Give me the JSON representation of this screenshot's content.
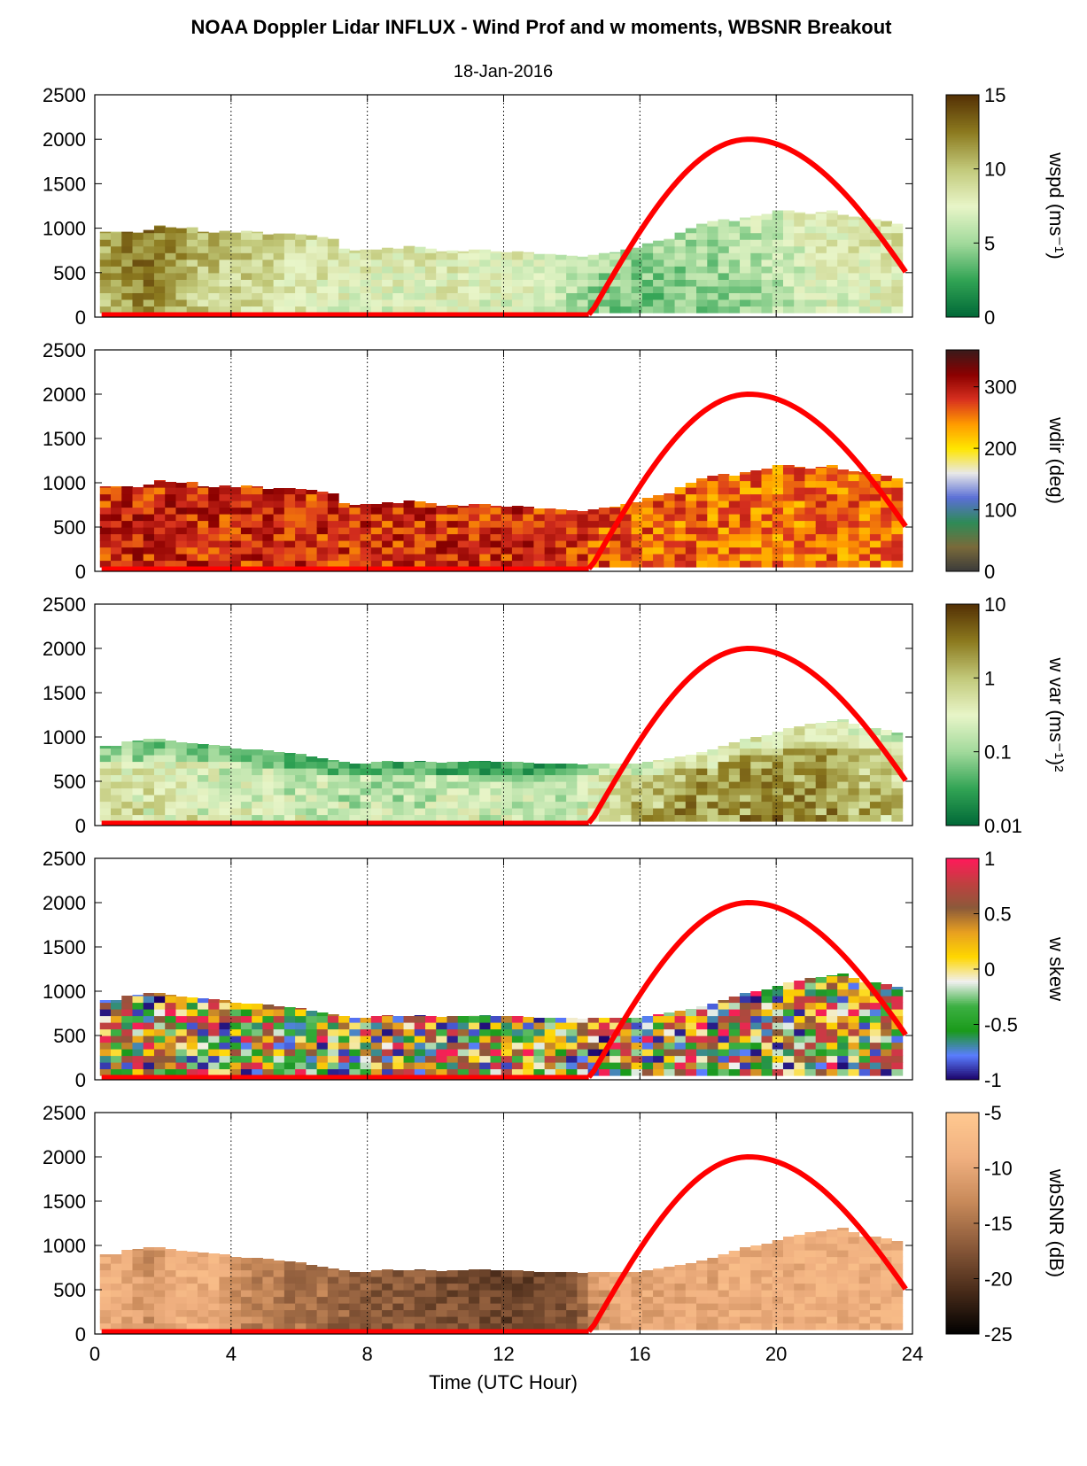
{
  "figure": {
    "title": "NOAA Doppler Lidar INFLUX - Wind Prof and w moments, WBSNR Breakout",
    "subtitle": "18-Jan-2016",
    "xlabel": "Time (UTC Hour)",
    "colors": {
      "sun_curve": "#ff0000",
      "axis": "#000000"
    }
  },
  "chart_data": [
    {
      "type": "heatmap",
      "id": "wspd",
      "clabel": "wspd (ms⁻¹)",
      "xlim": [
        0,
        24
      ],
      "ylim": [
        0,
        2500
      ],
      "yticks": [
        0,
        500,
        1000,
        1500,
        2000,
        2500
      ],
      "xticks": [
        0,
        4,
        8,
        12,
        16,
        20,
        24
      ],
      "clim": [
        0,
        15
      ],
      "cticks": [
        0,
        5,
        10,
        15
      ],
      "cticklabels": [
        "0",
        "5",
        "10",
        "15"
      ],
      "colormap": [
        "#006837",
        "#31a354",
        "#a1d99b",
        "#e8f5c8",
        "#c2c97a",
        "#8c7a1f",
        "#543005"
      ],
      "top_height": [
        960,
        960,
        960,
        950,
        980,
        1030,
        1010,
        1000,
        1010,
        960,
        950,
        970,
        950,
        970,
        960,
        930,
        940,
        940,
        930,
        920,
        900,
        880,
        770,
        750,
        760,
        760,
        780,
        770,
        800,
        790,
        770,
        740,
        750,
        740,
        760,
        760,
        740,
        730,
        740,
        730,
        710,
        710,
        700,
        690,
        680,
        700,
        720,
        730,
        760,
        780,
        830,
        860,
        880,
        950,
        1000,
        1050,
        1080,
        1100,
        1080,
        1120,
        1140,
        1160,
        1200,
        1200,
        1180,
        1160,
        1180,
        1200,
        1150,
        1130,
        1120,
        1100,
        1080,
        1050
      ],
      "mean_value": [
        11.5,
        11.8,
        12.4,
        12.8,
        13,
        12.6,
        11.8,
        11.4,
        10.8,
        10.6,
        10.4,
        10.2,
        10.1,
        10,
        9.8,
        9.5,
        9.3,
        9.2,
        9.1,
        9,
        8.8,
        8.6,
        8.5,
        8.4,
        8.3,
        8.3,
        8.2,
        8.2,
        8.2,
        8.3,
        8.4,
        8.5,
        8.5,
        8.4,
        8.3,
        8.2,
        8.1,
        8,
        7.9,
        7.8,
        7.6,
        7.3,
        7,
        6.6,
        6.1,
        5.7,
        5.4,
        5.2,
        5.1,
        5,
        5,
        5.1,
        5.2,
        5.3,
        5.4,
        5.5,
        5.6,
        5.7,
        5.9,
        6.1,
        6.3,
        6.6,
        6.9,
        7.2,
        7.5,
        7.8,
        8,
        8.2,
        8.3,
        8.4,
        8.5,
        8.6,
        8.7,
        8.8
      ],
      "sun_elevation": {
        "rise_hour": 14.5,
        "peak_hour": 19.2,
        "end_hour": 23.8,
        "peak_height": 2000
      }
    },
    {
      "type": "heatmap",
      "id": "wdir",
      "clabel": "wdir (deg)",
      "xlim": [
        0,
        24
      ],
      "ylim": [
        0,
        2500
      ],
      "yticks": [
        0,
        500,
        1000,
        1500,
        2000,
        2500
      ],
      "xticks": [
        0,
        4,
        8,
        12,
        16,
        20,
        24
      ],
      "clim": [
        0,
        360
      ],
      "cticks": [
        0,
        100,
        200,
        300
      ],
      "cticklabels": [
        "0",
        "100",
        "200",
        "300"
      ],
      "colormap": [
        "#3a3a3a",
        "#7a6a3a",
        "#2e8b57",
        "#5b6fd6",
        "#e8e8e8",
        "#ffe600",
        "#ff9a00",
        "#d7301f",
        "#8b0000",
        "#3a1a1a"
      ],
      "top_height": [
        960,
        960,
        960,
        950,
        980,
        1030,
        1010,
        1000,
        1010,
        960,
        950,
        970,
        950,
        970,
        960,
        930,
        940,
        940,
        930,
        920,
        900,
        880,
        770,
        750,
        760,
        760,
        780,
        770,
        800,
        790,
        770,
        740,
        750,
        740,
        760,
        760,
        740,
        730,
        740,
        730,
        710,
        710,
        700,
        690,
        680,
        700,
        720,
        730,
        760,
        780,
        830,
        860,
        880,
        950,
        1000,
        1050,
        1080,
        1100,
        1080,
        1120,
        1140,
        1160,
        1200,
        1200,
        1180,
        1160,
        1180,
        1200,
        1150,
        1130,
        1120,
        1100,
        1080,
        1050
      ],
      "mean_value": [
        286,
        288,
        290,
        290,
        289,
        288,
        288,
        287,
        287,
        286,
        286,
        286,
        286,
        285,
        285,
        285,
        285,
        285,
        285,
        284,
        284,
        284,
        284,
        284,
        284,
        284,
        284,
        284,
        284,
        284,
        284,
        284,
        284,
        284,
        284,
        284,
        284,
        284,
        284,
        284,
        283,
        283,
        283,
        282,
        281,
        272,
        266,
        264,
        262,
        261,
        260,
        259,
        258,
        257,
        256,
        255,
        255,
        254,
        254,
        254,
        254,
        254,
        254,
        254,
        254,
        254,
        254,
        254,
        254,
        254,
        254,
        254,
        254,
        254
      ],
      "sun_elevation": {
        "rise_hour": 14.5,
        "peak_hour": 19.2,
        "end_hour": 23.8,
        "peak_height": 2000
      }
    },
    {
      "type": "heatmap",
      "id": "wvar",
      "clabel": "w var (ms⁻¹)²",
      "scale": "log",
      "xlim": [
        0,
        24
      ],
      "ylim": [
        0,
        2500
      ],
      "yticks": [
        0,
        500,
        1000,
        1500,
        2000,
        2500
      ],
      "xticks": [
        0,
        4,
        8,
        12,
        16,
        20,
        24
      ],
      "clim": [
        0.01,
        10
      ],
      "cticks": [
        0.01,
        0.1,
        1,
        10
      ],
      "cticklabels": [
        "0.01",
        "0.1",
        "1",
        "10"
      ],
      "colormap": [
        "#006837",
        "#31a354",
        "#a1d99b",
        "#e8f5c8",
        "#c2c97a",
        "#8c7a1f",
        "#543005"
      ],
      "top_height": [
        900,
        900,
        950,
        960,
        980,
        980,
        960,
        940,
        930,
        920,
        910,
        900,
        870,
        860,
        860,
        850,
        830,
        820,
        810,
        780,
        760,
        740,
        720,
        700,
        700,
        720,
        730,
        720,
        720,
        730,
        720,
        710,
        720,
        720,
        730,
        730,
        720,
        720,
        720,
        710,
        700,
        700,
        700,
        700,
        690,
        700,
        700,
        700,
        700,
        700,
        720,
        740,
        760,
        780,
        800,
        830,
        860,
        900,
        940,
        980,
        1000,
        1020,
        1060,
        1100,
        1120,
        1150,
        1160,
        1180,
        1200,
        1150,
        1100,
        1100,
        1080,
        1050
      ],
      "mean_value": [
        0.3,
        0.32,
        0.3,
        0.28,
        0.28,
        0.26,
        0.25,
        0.24,
        0.22,
        0.2,
        0.19,
        0.18,
        0.17,
        0.16,
        0.16,
        0.15,
        0.15,
        0.14,
        0.14,
        0.14,
        0.13,
        0.13,
        0.12,
        0.12,
        0.12,
        0.12,
        0.12,
        0.12,
        0.12,
        0.12,
        0.12,
        0.12,
        0.12,
        0.12,
        0.12,
        0.11,
        0.11,
        0.11,
        0.11,
        0.11,
        0.11,
        0.11,
        0.12,
        0.14,
        0.18,
        0.25,
        0.35,
        0.5,
        0.6,
        0.7,
        0.8,
        0.9,
        1,
        1.1,
        1.2,
        1.3,
        1.3,
        1.4,
        1.4,
        1.4,
        1.5,
        1.5,
        1.5,
        1.4,
        1.4,
        1.3,
        1.2,
        1.1,
        1,
        0.9,
        0.8,
        0.7,
        0.6,
        0.5
      ],
      "sun_elevation": {
        "rise_hour": 14.5,
        "peak_hour": 19.2,
        "end_hour": 23.8,
        "peak_height": 2000
      }
    },
    {
      "type": "heatmap",
      "id": "wskew",
      "clabel": "w skew",
      "xlim": [
        0,
        24
      ],
      "ylim": [
        0,
        2500
      ],
      "yticks": [
        0,
        500,
        1000,
        1500,
        2000,
        2500
      ],
      "xticks": [
        0,
        4,
        8,
        12,
        16,
        20,
        24
      ],
      "clim": [
        -1,
        1
      ],
      "cticks": [
        -1,
        -0.5,
        0,
        0.5,
        1
      ],
      "cticklabels": [
        "-1",
        "-0.5",
        "0",
        "0.5",
        "1"
      ],
      "colormap": [
        "#1a0066",
        "#5a7dff",
        "#1a9a1a",
        "#3cb043",
        "#f0f0f0",
        "#ffd700",
        "#e8a020",
        "#8b5a3a",
        "#c04040",
        "#ff1a5a"
      ],
      "top_height": [
        900,
        900,
        950,
        960,
        980,
        980,
        960,
        940,
        930,
        920,
        910,
        900,
        870,
        860,
        860,
        850,
        830,
        820,
        810,
        780,
        760,
        740,
        720,
        700,
        700,
        720,
        730,
        720,
        720,
        730,
        720,
        710,
        720,
        720,
        730,
        730,
        720,
        720,
        720,
        710,
        700,
        700,
        700,
        700,
        690,
        700,
        700,
        700,
        700,
        700,
        720,
        740,
        760,
        780,
        800,
        830,
        860,
        900,
        940,
        980,
        1000,
        1020,
        1060,
        1100,
        1120,
        1150,
        1160,
        1180,
        1200,
        1150,
        1100,
        1100,
        1080,
        1050
      ],
      "mean_value": [
        0.3,
        0.3,
        0.25,
        0.25,
        0.2,
        0.2,
        0.2,
        0.2,
        0.2,
        0.15,
        0.15,
        0.15,
        0.15,
        0.15,
        0.1,
        0.1,
        0.1,
        0.1,
        0.1,
        0.1,
        0.1,
        0.1,
        0.1,
        0.1,
        0.1,
        0.1,
        0.1,
        0.1,
        0.1,
        0.1,
        0.1,
        0.1,
        0.1,
        0.1,
        0.1,
        0.1,
        0.1,
        0.1,
        0.1,
        0.1,
        0.1,
        0.1,
        0.1,
        0.1,
        0.1,
        0.1,
        0.1,
        0.1,
        0.2,
        0.2,
        0.2,
        0.2,
        0.2,
        0.25,
        0.25,
        0.3,
        0.3,
        0.3,
        0.3,
        0.35,
        0.35,
        0.4,
        0.4,
        0.4,
        0.4,
        0.35,
        0.35,
        0.3,
        0.3,
        0.3,
        0.25,
        0.2,
        0.2,
        0.2
      ],
      "sun_elevation": {
        "rise_hour": 14.5,
        "peak_hour": 19.2,
        "end_hour": 23.8,
        "peak_height": 2000
      }
    },
    {
      "type": "heatmap",
      "id": "wbsnr",
      "clabel": "wbSNR (dB)",
      "xlim": [
        0,
        24
      ],
      "ylim": [
        0,
        2500
      ],
      "yticks": [
        0,
        500,
        1000,
        1500,
        2000,
        2500
      ],
      "xticks": [
        0,
        4,
        8,
        12,
        16,
        20,
        24
      ],
      "clim": [
        -25,
        -5
      ],
      "cticks": [
        -25,
        -20,
        -15,
        -10,
        -5
      ],
      "cticklabels": [
        "-25",
        "-20",
        "-15",
        "-10",
        "-5"
      ],
      "colormap": [
        "#000000",
        "#4a2c1a",
        "#8b5a3a",
        "#c88a5a",
        "#f0b080",
        "#ffc890"
      ],
      "top_height": [
        900,
        900,
        950,
        960,
        980,
        980,
        960,
        940,
        930,
        920,
        910,
        900,
        870,
        860,
        860,
        850,
        830,
        820,
        810,
        780,
        760,
        740,
        720,
        700,
        700,
        720,
        730,
        720,
        720,
        730,
        720,
        710,
        720,
        720,
        730,
        730,
        720,
        720,
        720,
        710,
        700,
        700,
        700,
        700,
        690,
        700,
        700,
        700,
        700,
        700,
        720,
        740,
        760,
        780,
        800,
        830,
        860,
        900,
        940,
        980,
        1000,
        1020,
        1060,
        1100,
        1120,
        1150,
        1160,
        1180,
        1200,
        1150,
        1100,
        1100,
        1080,
        1050
      ],
      "mean_value": [
        -9,
        -9,
        -10,
        -11,
        -12,
        -11,
        -10,
        -9,
        -9,
        -9,
        -9,
        -10,
        -12,
        -13,
        -14,
        -14,
        -14,
        -15,
        -15,
        -15,
        -15,
        -16,
        -16,
        -16,
        -17,
        -17,
        -17,
        -17,
        -17,
        -17,
        -18,
        -18,
        -18,
        -18,
        -18,
        -18,
        -19,
        -19,
        -19,
        -19,
        -18,
        -18,
        -18,
        -17,
        -16,
        -12,
        -11,
        -10,
        -10,
        -10,
        -10,
        -10,
        -10,
        -10,
        -10,
        -10,
        -10,
        -9,
        -9,
        -9,
        -9,
        -9,
        -9,
        -9,
        -9,
        -9,
        -9,
        -9,
        -9,
        -9,
        -9,
        -9,
        -9,
        -9
      ],
      "sun_elevation": {
        "rise_hour": 14.5,
        "peak_hour": 19.2,
        "end_hour": 23.8,
        "peak_height": 2000
      }
    }
  ]
}
